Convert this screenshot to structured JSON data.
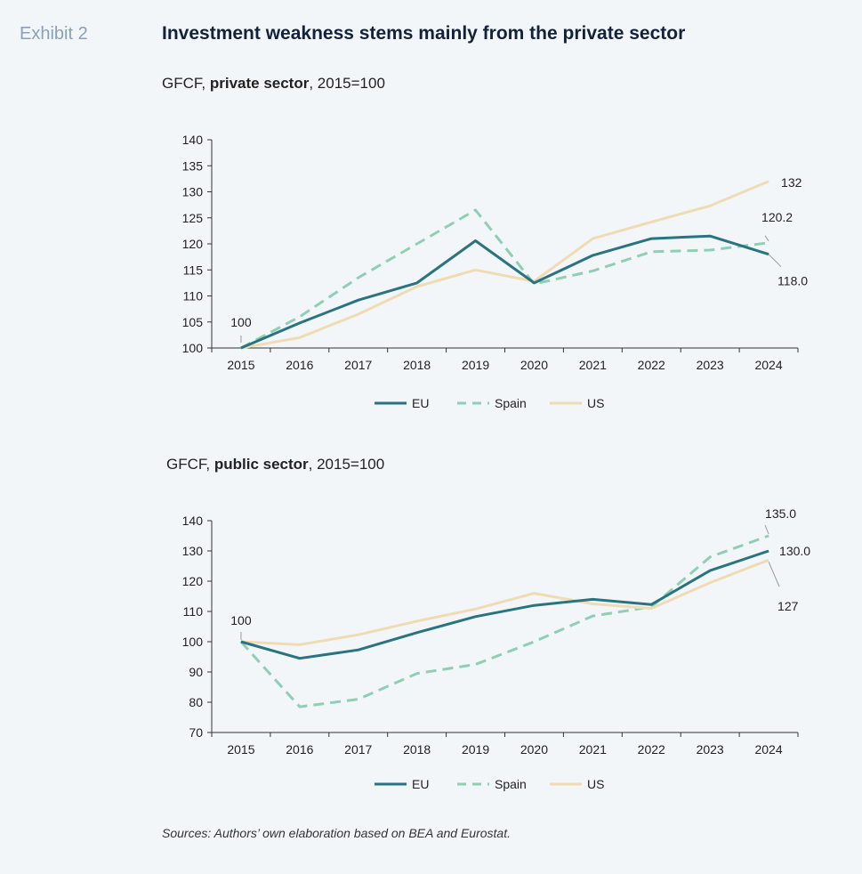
{
  "header": {
    "exhibit": "Exhibit 2",
    "title": "Investment weakness stems mainly from the private sector"
  },
  "sources": "Sources: Authors’ own elaboration based on BEA and Eurostat.",
  "colors": {
    "EU": "#2a7480",
    "Spain": "#8fcfb3",
    "US": "#efdcb4",
    "axis": "#333333",
    "leader": "#999999"
  },
  "chart_data": [
    {
      "type": "line",
      "title_prefix": "GFCF, ",
      "title_bold": "private sector",
      "title_suffix": ", 2015=100",
      "categories": [
        "2015",
        "2016",
        "2017",
        "2018",
        "2019",
        "2020",
        "2021",
        "2022",
        "2023",
        "2024"
      ],
      "ylim": [
        100,
        140
      ],
      "yticks": [
        100,
        105,
        110,
        115,
        120,
        125,
        130,
        135,
        140
      ],
      "series": [
        {
          "name": "EU",
          "style": "solid",
          "values": [
            100,
            104.8,
            109.2,
            112.5,
            120.6,
            112.5,
            117.8,
            121.0,
            121.5,
            118.0
          ]
        },
        {
          "name": "Spain",
          "style": "dashed",
          "values": [
            100,
            106.0,
            113.5,
            120.0,
            126.5,
            112.3,
            114.8,
            118.5,
            118.8,
            120.2
          ]
        },
        {
          "name": "US",
          "style": "solid",
          "values": [
            100,
            102.0,
            106.5,
            111.8,
            115.0,
            112.8,
            121.0,
            124.2,
            127.3,
            132.0
          ]
        }
      ],
      "annotations": [
        {
          "text": "100",
          "series": "EU",
          "index": 0
        },
        {
          "text": "132",
          "series": "US",
          "index": 9
        },
        {
          "text": "120.2",
          "series": "Spain",
          "index": 9
        },
        {
          "text": "118.0",
          "series": "EU",
          "index": 9
        }
      ],
      "legend": [
        "EU",
        "Spain",
        "US"
      ],
      "legend_position": "bottom-center",
      "grid": false
    },
    {
      "type": "line",
      "title_prefix": "GFCF, ",
      "title_bold": "public sector",
      "title_suffix": ", 2015=100",
      "categories": [
        "2015",
        "2016",
        "2017",
        "2018",
        "2019",
        "2020",
        "2021",
        "2022",
        "2023",
        "2024"
      ],
      "ylim": [
        70,
        140
      ],
      "yticks": [
        70,
        80,
        90,
        100,
        110,
        120,
        130,
        140
      ],
      "series": [
        {
          "name": "EU",
          "style": "solid",
          "values": [
            100,
            94.5,
            97.3,
            103.0,
            108.3,
            112.0,
            114.0,
            112.3,
            123.5,
            130.0
          ]
        },
        {
          "name": "Spain",
          "style": "dashed",
          "values": [
            100,
            78.5,
            81.0,
            89.5,
            92.5,
            100.0,
            108.5,
            111.5,
            128.0,
            135.0
          ]
        },
        {
          "name": "US",
          "style": "solid",
          "values": [
            100,
            99.0,
            102.3,
            106.8,
            110.8,
            116.0,
            112.5,
            111.0,
            119.5,
            127.0
          ]
        }
      ],
      "annotations": [
        {
          "text": "100",
          "series": "EU",
          "index": 0
        },
        {
          "text": "135.0",
          "series": "Spain",
          "index": 9
        },
        {
          "text": "130.0",
          "series": "EU",
          "index": 9
        },
        {
          "text": "127",
          "series": "US",
          "index": 9
        }
      ],
      "legend": [
        "EU",
        "Spain",
        "US"
      ],
      "legend_position": "bottom-center",
      "grid": false
    }
  ]
}
